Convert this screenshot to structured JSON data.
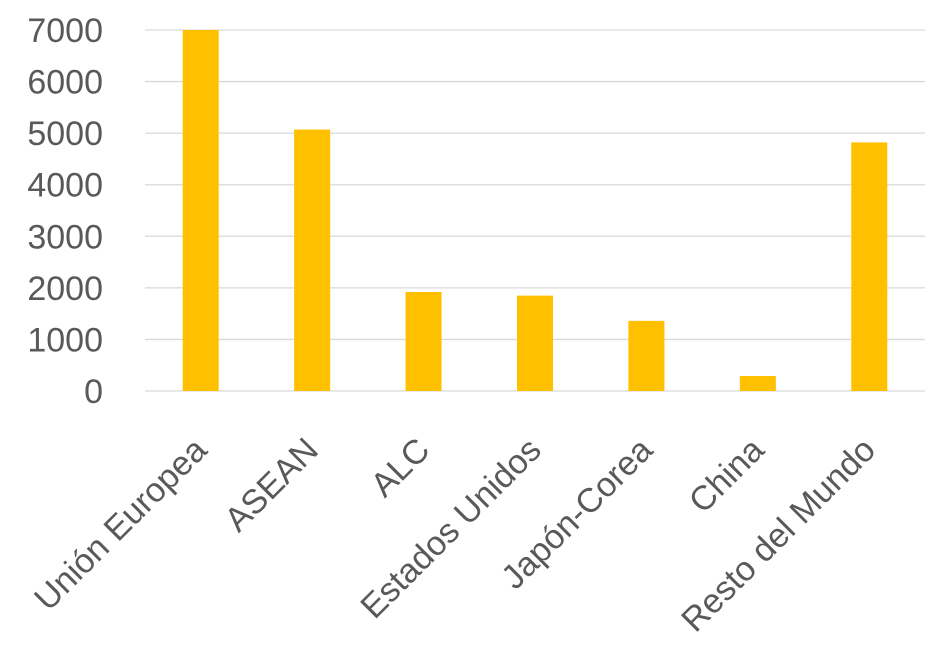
{
  "chart_data": {
    "type": "bar",
    "categories": [
      "Unión Europea",
      "ASEAN",
      "ALC",
      "Estados Unidos",
      "Japón-Corea",
      "China",
      "Resto del Mundo"
    ],
    "values": [
      7000,
      5070,
      1920,
      1850,
      1360,
      290,
      4820
    ],
    "title": "",
    "xlabel": "",
    "ylabel": "",
    "ylim": [
      0,
      7000
    ],
    "yticks": [
      0,
      1000,
      2000,
      3000,
      4000,
      5000,
      6000,
      7000
    ],
    "grid": true,
    "legend": "none",
    "bar_color": "#FFC000"
  }
}
